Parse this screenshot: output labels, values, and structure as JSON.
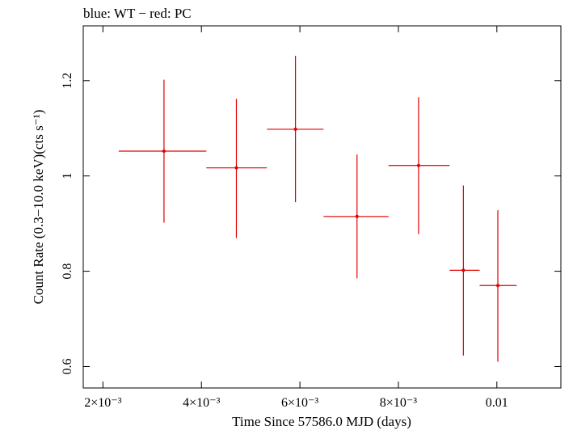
{
  "chart_data": {
    "type": "scatter",
    "title": "blue: WT − red: PC",
    "xlabel": "Time Since 57586.0 MJD (days)",
    "ylabel": "Count Rate (0.3−10.0 keV)(cts s⁻¹)",
    "xlim": [
      0.0016,
      0.0113
    ],
    "ylim": [
      0.555,
      1.315
    ],
    "x_ticks": [
      {
        "value": 0.002,
        "label": "2×10⁻³"
      },
      {
        "value": 0.004,
        "label": "4×10⁻³"
      },
      {
        "value": 0.006,
        "label": "6×10⁻³"
      },
      {
        "value": 0.008,
        "label": "8×10⁻³"
      },
      {
        "value": 0.01,
        "label": "0.01"
      }
    ],
    "y_ticks": [
      {
        "value": 0.6,
        "label": "0.6"
      },
      {
        "value": 0.8,
        "label": "0.8"
      },
      {
        "value": 1.0,
        "label": "1"
      },
      {
        "value": 1.2,
        "label": "1.2"
      }
    ],
    "grid": false,
    "series": [
      {
        "color": "#e00000",
        "points": [
          {
            "x": 0.00324,
            "y": 1.052,
            "xlo": 0.00232,
            "xhi": 0.0041,
            "ylo": 0.902,
            "yhi": 1.202
          },
          {
            "x": 0.00471,
            "y": 1.017,
            "xlo": 0.0041,
            "xhi": 0.00533,
            "ylo": 0.87,
            "yhi": 1.162
          },
          {
            "x": 0.00591,
            "y": 1.098,
            "xlo": 0.00533,
            "xhi": 0.00648,
            "ylo": 0.945,
            "yhi": 1.252
          },
          {
            "x": 0.00716,
            "y": 0.915,
            "xlo": 0.00648,
            "xhi": 0.0078,
            "ylo": 0.785,
            "yhi": 1.045
          },
          {
            "x": 0.00841,
            "y": 1.022,
            "xlo": 0.0078,
            "xhi": 0.00904,
            "ylo": 0.878,
            "yhi": 1.165
          },
          {
            "x": 0.00932,
            "y": 0.802,
            "xlo": 0.00904,
            "xhi": 0.00965,
            "ylo": 0.623,
            "yhi": 0.98
          },
          {
            "x": 0.01002,
            "y": 0.77,
            "xlo": 0.00965,
            "xhi": 0.0104,
            "ylo": 0.61,
            "yhi": 0.928
          }
        ]
      }
    ]
  }
}
